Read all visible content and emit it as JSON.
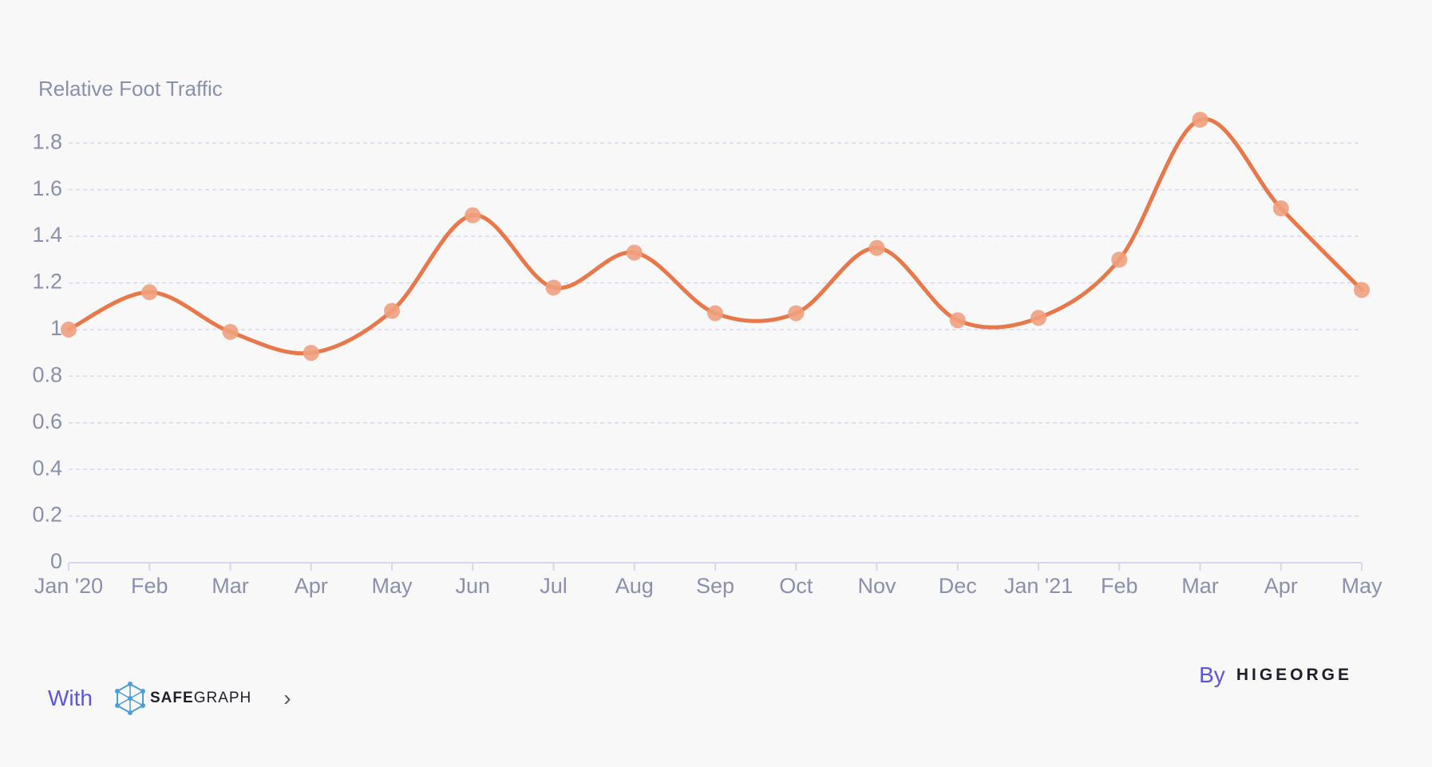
{
  "chart_data": {
    "type": "line",
    "ylabel": "Relative Foot Traffic",
    "ylim": [
      0,
      1.9
    ],
    "yticks": [
      "0",
      "0.2",
      "0.4",
      "0.6",
      "0.8",
      "1",
      "1.2",
      "1.4",
      "1.6",
      "1.8"
    ],
    "categories": [
      "Jan '20",
      "Feb",
      "Mar",
      "Apr",
      "May",
      "Jun",
      "Jul",
      "Aug",
      "Sep",
      "Oct",
      "Nov",
      "Dec",
      "Jan '21",
      "Feb",
      "Mar",
      "Apr",
      "May"
    ],
    "series": [
      {
        "values": [
          1.0,
          1.16,
          0.99,
          0.9,
          1.08,
          1.49,
          1.18,
          1.33,
          1.07,
          1.07,
          1.35,
          1.04,
          1.05,
          1.3,
          1.9,
          1.52,
          1.17
        ],
        "color": "#e8784a",
        "point_color": "#efa07e"
      }
    ],
    "grid": true,
    "grid_style": "dashed"
  },
  "footer": {
    "with_label": "With",
    "safegraph_bold": "SAFE",
    "safegraph_rest": "GRAPH",
    "chevron": "›",
    "by_label": "By",
    "higeorge": "HIGEORGE"
  }
}
